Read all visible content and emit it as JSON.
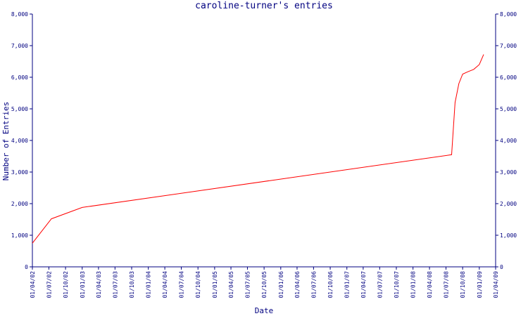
{
  "chart_data": {
    "type": "line",
    "title": "caroline-turner's entries",
    "xlabel": "Date",
    "ylabel": "Number of Entries",
    "ylim": [
      0,
      8000
    ],
    "y_ticks": [
      "0",
      "1,000",
      "2,000",
      "3,000",
      "4,000",
      "5,000",
      "6,000",
      "7,000",
      "8,000"
    ],
    "x_ticks": [
      "01/04/02",
      "01/07/02",
      "01/10/02",
      "01/01/03",
      "01/04/03",
      "01/07/03",
      "01/10/03",
      "01/01/04",
      "01/04/04",
      "01/07/04",
      "01/10/04",
      "01/01/05",
      "01/04/05",
      "01/07/05",
      "01/10/05",
      "01/01/06",
      "01/04/06",
      "01/07/06",
      "01/10/06",
      "01/01/07",
      "01/04/07",
      "01/07/07",
      "01/10/07",
      "01/01/08",
      "01/04/08",
      "01/07/08",
      "01/10/08",
      "01/01/09",
      "01/04/09"
    ],
    "grid": false,
    "series": [
      {
        "color": "#ff0000",
        "x": [
          "2002-04-01",
          "2002-07-15",
          "2003-01-01",
          "2008-08-01",
          "2008-08-20",
          "2008-09-10",
          "2008-10-01",
          "2008-11-01",
          "2008-12-01",
          "2009-01-01",
          "2009-01-25"
        ],
        "y": [
          750,
          1520,
          1880,
          3550,
          5200,
          5800,
          6100,
          6180,
          6250,
          6400,
          6720
        ]
      }
    ]
  }
}
